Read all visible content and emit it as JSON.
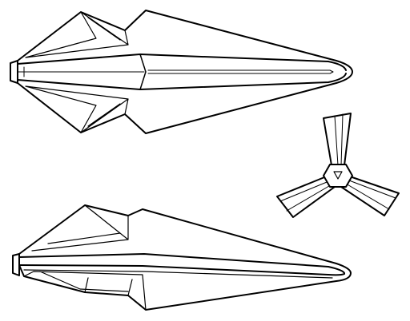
{
  "figure": {
    "ink_color": "#000000",
    "paper_color": "#ffffff",
    "views": [
      {
        "name": "top-view"
      },
      {
        "name": "rear-view"
      },
      {
        "name": "side-view"
      }
    ]
  }
}
